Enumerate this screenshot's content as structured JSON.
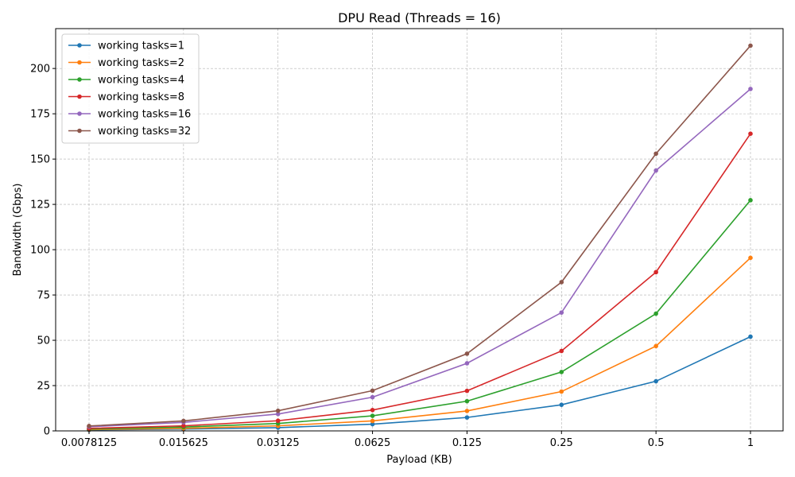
{
  "chart_data": {
    "type": "line",
    "title": "DPU Read (Threads = 16)",
    "xlabel": "Payload (KB)",
    "ylabel": "Bandwidth (Gbps)",
    "x_scale": "log2",
    "categories": [
      "0.0078125",
      "0.015625",
      "0.03125",
      "0.0625",
      "0.125",
      "0.25",
      "0.5",
      "1"
    ],
    "x": [
      0.0078125,
      0.015625,
      0.03125,
      0.0625,
      0.125,
      0.25,
      0.5,
      1
    ],
    "ylim": [
      0,
      222
    ],
    "yticks": [
      0,
      25,
      50,
      75,
      100,
      125,
      150,
      175,
      200
    ],
    "grid": true,
    "legend_position": "top-left",
    "series": [
      {
        "name": "working tasks=1",
        "color": "#1f77b4",
        "values": [
          0.5,
          1.0,
          1.8,
          3.7,
          7.4,
          14.4,
          27.4,
          52.0
        ]
      },
      {
        "name": "working tasks=2",
        "color": "#ff7f0e",
        "values": [
          0.7,
          1.4,
          2.8,
          5.5,
          11.0,
          21.7,
          46.8,
          95.5
        ]
      },
      {
        "name": "working tasks=4",
        "color": "#2ca02c",
        "values": [
          1.0,
          2.1,
          4.1,
          8.3,
          16.4,
          32.5,
          64.7,
          127.3
        ]
      },
      {
        "name": "working tasks=8",
        "color": "#d62728",
        "values": [
          1.4,
          2.8,
          5.6,
          11.5,
          22.1,
          44.1,
          87.6,
          164.0
        ]
      },
      {
        "name": "working tasks=16",
        "color": "#9467bd",
        "values": [
          2.3,
          4.7,
          9.3,
          18.6,
          37.3,
          65.3,
          143.7,
          188.7
        ]
      },
      {
        "name": "working tasks=32",
        "color": "#8c564b",
        "values": [
          2.7,
          5.5,
          11.1,
          22.2,
          42.6,
          82.1,
          153.0,
          212.6
        ]
      }
    ]
  }
}
